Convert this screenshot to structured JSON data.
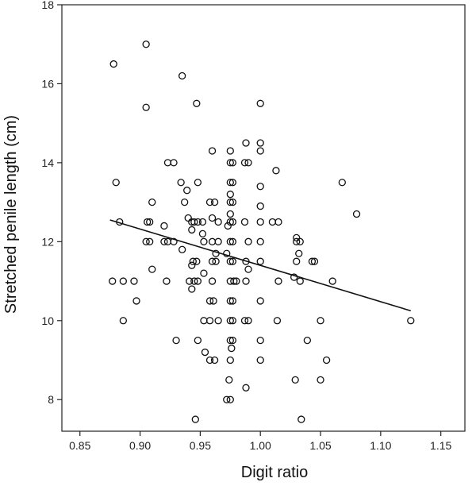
{
  "chart_data": {
    "type": "scatter",
    "title": "",
    "xlabel": "Digit ratio",
    "ylabel": "Stretched penile length (cm)",
    "xlim": [
      0.835,
      1.17
    ],
    "ylim": [
      7.2,
      18
    ],
    "xticks": [
      0.85,
      0.9,
      0.95,
      1.0,
      1.05,
      1.1,
      1.15
    ],
    "xtick_labels": [
      "0.85",
      "0.90",
      "0.95",
      "1.00",
      "1.05",
      "1.10",
      "1.15"
    ],
    "yticks": [
      8,
      10,
      12,
      14,
      16,
      18
    ],
    "ytick_labels": [
      "8",
      "10",
      "12",
      "14",
      "16",
      "18"
    ],
    "grid": false,
    "marker": "open-circle",
    "trendline": {
      "x": [
        0.875,
        1.125
      ],
      "y": [
        12.55,
        10.25
      ]
    },
    "points": [
      [
        0.878,
        16.5
      ],
      [
        0.905,
        17.0
      ],
      [
        0.905,
        15.4
      ],
      [
        0.935,
        16.2
      ],
      [
        0.947,
        15.5
      ],
      [
        1.0,
        15.5
      ],
      [
        0.96,
        14.3
      ],
      [
        0.975,
        14.3
      ],
      [
        0.988,
        14.5
      ],
      [
        1.0,
        14.5
      ],
      [
        1.0,
        14.3
      ],
      [
        0.923,
        14.0
      ],
      [
        0.928,
        14.0
      ],
      [
        0.975,
        14.0
      ],
      [
        0.977,
        14.0
      ],
      [
        0.987,
        14.0
      ],
      [
        0.99,
        14.0
      ],
      [
        1.013,
        13.8
      ],
      [
        0.88,
        13.5
      ],
      [
        0.934,
        13.5
      ],
      [
        0.948,
        13.5
      ],
      [
        0.975,
        13.5
      ],
      [
        0.977,
        13.5
      ],
      [
        1.068,
        13.5
      ],
      [
        0.939,
        13.3
      ],
      [
        0.975,
        13.2
      ],
      [
        1.0,
        13.4
      ],
      [
        0.91,
        13.0
      ],
      [
        0.937,
        13.0
      ],
      [
        0.958,
        13.0
      ],
      [
        0.962,
        13.0
      ],
      [
        0.975,
        13.0
      ],
      [
        0.977,
        13.0
      ],
      [
        1.0,
        12.9
      ],
      [
        0.975,
        12.7
      ],
      [
        1.08,
        12.7
      ],
      [
        0.94,
        12.6
      ],
      [
        0.96,
        12.6
      ],
      [
        0.883,
        12.5
      ],
      [
        0.906,
        12.5
      ],
      [
        0.908,
        12.5
      ],
      [
        0.943,
        12.5
      ],
      [
        0.945,
        12.5
      ],
      [
        0.948,
        12.5
      ],
      [
        0.952,
        12.5
      ],
      [
        0.965,
        12.5
      ],
      [
        0.975,
        12.5
      ],
      [
        0.977,
        12.5
      ],
      [
        0.987,
        12.5
      ],
      [
        1.0,
        12.5
      ],
      [
        1.01,
        12.5
      ],
      [
        1.015,
        12.5
      ],
      [
        0.92,
        12.4
      ],
      [
        0.943,
        12.3
      ],
      [
        0.973,
        12.4
      ],
      [
        0.952,
        12.2
      ],
      [
        1.03,
        12.1
      ],
      [
        0.905,
        12.0
      ],
      [
        0.908,
        12.0
      ],
      [
        0.92,
        12.0
      ],
      [
        0.923,
        12.0
      ],
      [
        0.928,
        12.0
      ],
      [
        0.953,
        12.0
      ],
      [
        0.96,
        12.0
      ],
      [
        0.965,
        12.0
      ],
      [
        0.975,
        12.0
      ],
      [
        0.977,
        12.0
      ],
      [
        0.99,
        12.0
      ],
      [
        1.0,
        12.0
      ],
      [
        1.03,
        12.0
      ],
      [
        1.033,
        12.0
      ],
      [
        0.935,
        11.8
      ],
      [
        0.963,
        11.7
      ],
      [
        0.972,
        11.7
      ],
      [
        1.032,
        11.7
      ],
      [
        0.944,
        11.5
      ],
      [
        0.947,
        11.5
      ],
      [
        0.96,
        11.5
      ],
      [
        0.963,
        11.5
      ],
      [
        0.975,
        11.5
      ],
      [
        0.977,
        11.5
      ],
      [
        0.988,
        11.5
      ],
      [
        1.0,
        11.5
      ],
      [
        1.03,
        11.5
      ],
      [
        1.043,
        11.5
      ],
      [
        1.045,
        11.5
      ],
      [
        0.943,
        11.4
      ],
      [
        0.91,
        11.3
      ],
      [
        0.99,
        11.3
      ],
      [
        0.953,
        11.2
      ],
      [
        0.877,
        11.0
      ],
      [
        0.886,
        11.0
      ],
      [
        0.895,
        11.0
      ],
      [
        0.922,
        11.0
      ],
      [
        0.941,
        11.0
      ],
      [
        0.945,
        11.0
      ],
      [
        0.948,
        11.0
      ],
      [
        0.96,
        11.0
      ],
      [
        0.975,
        11.0
      ],
      [
        0.978,
        11.0
      ],
      [
        0.98,
        11.0
      ],
      [
        0.988,
        11.0
      ],
      [
        1.015,
        11.0
      ],
      [
        1.033,
        11.0
      ],
      [
        1.06,
        11.0
      ],
      [
        1.028,
        11.1
      ],
      [
        0.943,
        10.8
      ],
      [
        0.958,
        10.5
      ],
      [
        0.961,
        10.5
      ],
      [
        0.975,
        10.5
      ],
      [
        0.977,
        10.5
      ],
      [
        1.0,
        10.5
      ],
      [
        0.897,
        10.5
      ],
      [
        0.886,
        10.0
      ],
      [
        0.953,
        10.0
      ],
      [
        0.958,
        10.0
      ],
      [
        0.965,
        10.0
      ],
      [
        0.975,
        10.0
      ],
      [
        0.977,
        10.0
      ],
      [
        0.987,
        10.0
      ],
      [
        0.99,
        10.0
      ],
      [
        1.014,
        10.0
      ],
      [
        1.05,
        10.0
      ],
      [
        1.125,
        10.0
      ],
      [
        0.93,
        9.5
      ],
      [
        0.948,
        9.5
      ],
      [
        0.975,
        9.5
      ],
      [
        0.977,
        9.5
      ],
      [
        1.0,
        9.5
      ],
      [
        1.039,
        9.5
      ],
      [
        0.954,
        9.2
      ],
      [
        0.976,
        9.3
      ],
      [
        0.958,
        9.0
      ],
      [
        0.962,
        9.0
      ],
      [
        0.975,
        9.0
      ],
      [
        1.0,
        9.0
      ],
      [
        1.055,
        9.0
      ],
      [
        0.974,
        8.5
      ],
      [
        1.029,
        8.5
      ],
      [
        1.05,
        8.5
      ],
      [
        0.988,
        8.3
      ],
      [
        0.972,
        8.0
      ],
      [
        0.975,
        8.0
      ],
      [
        0.946,
        7.5
      ],
      [
        1.034,
        7.5
      ]
    ]
  }
}
